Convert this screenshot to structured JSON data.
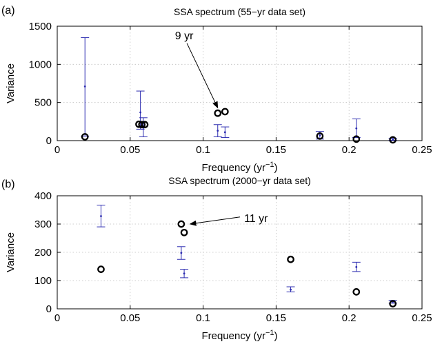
{
  "chart_data": [
    {
      "panel_label": "(a)",
      "type": "scatter",
      "title": "SSA spectrum (55−yr data set)",
      "xlabel": "Frequency (yr",
      "xlabel_sup": "−1",
      "xlabel_end": ")",
      "ylabel": "Variance",
      "xlim": [
        0,
        0.25
      ],
      "ylim": [
        0,
        1500
      ],
      "xticks": [
        0,
        0.05,
        0.1,
        0.15,
        0.2,
        0.25
      ],
      "xtick_labels": [
        "0",
        "0.05",
        "0.1",
        "0.15",
        "0.2",
        "0.25"
      ],
      "yticks": [
        0,
        500,
        1000,
        1500
      ],
      "ytick_labels": [
        "0",
        "500",
        "1000",
        "1500"
      ],
      "grid": true,
      "colors": {
        "data": "#000000",
        "errorbar": "#2b2bb0"
      },
      "series": [
        {
          "kind": "data-points",
          "points": [
            {
              "x": 0.019,
              "y": 50
            },
            {
              "x": 0.056,
              "y": 215
            },
            {
              "x": 0.058,
              "y": 210
            },
            {
              "x": 0.06,
              "y": 210
            },
            {
              "x": 0.11,
              "y": 360
            },
            {
              "x": 0.115,
              "y": 380
            },
            {
              "x": 0.18,
              "y": 60
            },
            {
              "x": 0.205,
              "y": 20
            },
            {
              "x": 0.23,
              "y": 10
            }
          ]
        },
        {
          "kind": "error-bars",
          "bars": [
            {
              "x": 0.019,
              "y": 710,
              "low": 60,
              "high": 1350
            },
            {
              "x": 0.057,
              "y": 370,
              "low": 150,
              "high": 650
            },
            {
              "x": 0.059,
              "y": 170,
              "low": 50,
              "high": 300
            },
            {
              "x": 0.11,
              "y": 130,
              "low": 50,
              "high": 210
            },
            {
              "x": 0.115,
              "y": 110,
              "low": 40,
              "high": 180
            },
            {
              "x": 0.18,
              "y": 70,
              "low": 20,
              "high": 120
            },
            {
              "x": 0.205,
              "y": 160,
              "low": 40,
              "high": 285
            },
            {
              "x": 0.23,
              "y": 15,
              "low": 5,
              "high": 30
            }
          ]
        }
      ],
      "annotation": {
        "text": "9 yr",
        "target_x": 0.11,
        "target_y": 430,
        "text_x": 0.087,
        "text_y": 1330
      }
    },
    {
      "panel_label": "(b)",
      "type": "scatter",
      "title": "SSA spectrum (2000−yr data set)",
      "xlabel": "Frequency (yr",
      "xlabel_sup": "−1",
      "xlabel_end": ")",
      "ylabel": "Variance",
      "xlim": [
        0,
        0.25
      ],
      "ylim": [
        0,
        400
      ],
      "xticks": [
        0,
        0.05,
        0.1,
        0.15,
        0.2,
        0.25
      ],
      "xtick_labels": [
        "0",
        "0.05",
        "0.1",
        "0.15",
        "0.2",
        "0.25"
      ],
      "yticks": [
        0,
        100,
        200,
        300,
        400
      ],
      "ytick_labels": [
        "0",
        "100",
        "200",
        "300",
        "400"
      ],
      "grid": true,
      "colors": {
        "data": "#000000",
        "errorbar": "#2b2bb0"
      },
      "series": [
        {
          "kind": "data-points",
          "points": [
            {
              "x": 0.03,
              "y": 140
            },
            {
              "x": 0.085,
              "y": 300
            },
            {
              "x": 0.087,
              "y": 270
            },
            {
              "x": 0.16,
              "y": 175
            },
            {
              "x": 0.205,
              "y": 60
            },
            {
              "x": 0.23,
              "y": 18
            }
          ]
        },
        {
          "kind": "error-bars",
          "bars": [
            {
              "x": 0.03,
              "y": 328,
              "low": 290,
              "high": 367
            },
            {
              "x": 0.085,
              "y": 198,
              "low": 175,
              "high": 220
            },
            {
              "x": 0.087,
              "y": 125,
              "low": 110,
              "high": 140
            },
            {
              "x": 0.16,
              "y": 68,
              "low": 60,
              "high": 78
            },
            {
              "x": 0.205,
              "y": 148,
              "low": 132,
              "high": 165
            },
            {
              "x": 0.23,
              "y": 25,
              "low": 20,
              "high": 30
            }
          ]
        }
      ],
      "annotation": {
        "text": "11 yr",
        "target_x": 0.091,
        "target_y": 300,
        "text_x": 0.113,
        "text_y": 320
      }
    }
  ]
}
